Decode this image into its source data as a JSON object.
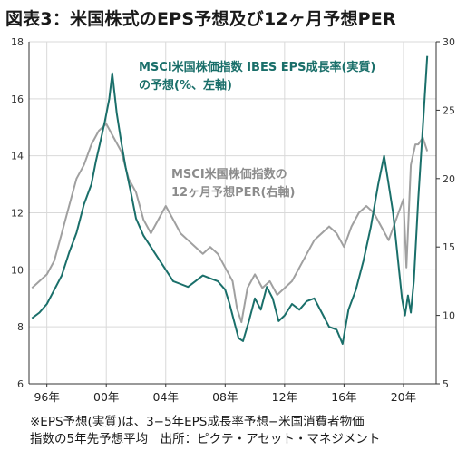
{
  "title": "図表3：米国株式のEPS予想及び12ヶ月予想PER",
  "footnote": {
    "line1": "※EPS予想(実質)は、3−5年EPS成長率予想−米国消費者物価",
    "line2": "指数の5年先予想平均　出所：ピクテ・アセット・マネジメント"
  },
  "colors": {
    "eps_series": "#1a6f6a",
    "per_series": "#a0a0a0",
    "eps_label": "#1a6f6a",
    "per_label": "#8c8c8c",
    "grid": "#d9d9d9",
    "axis": "#333333"
  },
  "chart_data": {
    "type": "line",
    "x_tick_labels": [
      "96年",
      "00年",
      "04年",
      "08年",
      "12年",
      "16年",
      "20年"
    ],
    "x_ticks": [
      1996,
      2000,
      2004,
      2008,
      2012,
      2016,
      2020
    ],
    "xlim": [
      1994.8,
      2022.2
    ],
    "y_left": {
      "lim": [
        6,
        18
      ],
      "ticks": [
        6,
        8,
        10,
        12,
        14,
        16,
        18
      ],
      "tick_labels": [
        "6",
        "8",
        "10",
        "12",
        "14",
        "16",
        "18"
      ]
    },
    "y_right": {
      "lim": [
        5,
        30
      ],
      "ticks": [
        5,
        10,
        15,
        20,
        25,
        30
      ],
      "tick_labels": [
        "5",
        "10",
        "15",
        "20",
        "25",
        "30"
      ]
    },
    "grid": true,
    "series": [
      {
        "name": "MSCI米国株価指数 IBES EPS成長率(実質)の予想(%、左軸)",
        "label_line1": "MSCI米国株価指数 IBES EPS成長率(実質)",
        "label_line2": "の予想(%、左軸)",
        "axis": "left",
        "points": [
          [
            1995.0,
            8.3
          ],
          [
            1995.5,
            8.5
          ],
          [
            1996.0,
            8.8
          ],
          [
            1996.5,
            9.3
          ],
          [
            1997.0,
            9.8
          ],
          [
            1997.5,
            10.6
          ],
          [
            1998.0,
            11.3
          ],
          [
            1998.5,
            12.3
          ],
          [
            1999.0,
            13.0
          ],
          [
            1999.3,
            13.8
          ],
          [
            1999.6,
            14.5
          ],
          [
            1999.9,
            15.2
          ],
          [
            2000.2,
            16.0
          ],
          [
            2000.4,
            16.9
          ],
          [
            2000.7,
            15.5
          ],
          [
            2001.0,
            14.5
          ],
          [
            2001.3,
            13.6
          ],
          [
            2001.7,
            12.6
          ],
          [
            2002.0,
            11.8
          ],
          [
            2002.5,
            11.2
          ],
          [
            2003.0,
            10.8
          ],
          [
            2003.5,
            10.4
          ],
          [
            2004.0,
            10.0
          ],
          [
            2004.5,
            9.6
          ],
          [
            2005.0,
            9.5
          ],
          [
            2005.5,
            9.4
          ],
          [
            2006.0,
            9.6
          ],
          [
            2006.5,
            9.8
          ],
          [
            2007.0,
            9.7
          ],
          [
            2007.5,
            9.6
          ],
          [
            2008.0,
            9.3
          ],
          [
            2008.3,
            8.8
          ],
          [
            2008.6,
            8.2
          ],
          [
            2008.9,
            7.6
          ],
          [
            2009.2,
            7.5
          ],
          [
            2009.6,
            8.2
          ],
          [
            2010.0,
            9.0
          ],
          [
            2010.4,
            8.6
          ],
          [
            2010.8,
            9.4
          ],
          [
            2011.2,
            9.0
          ],
          [
            2011.6,
            8.2
          ],
          [
            2012.0,
            8.4
          ],
          [
            2012.5,
            8.8
          ],
          [
            2013.0,
            8.6
          ],
          [
            2013.5,
            8.9
          ],
          [
            2014.0,
            9.0
          ],
          [
            2014.5,
            8.5
          ],
          [
            2015.0,
            8.0
          ],
          [
            2015.5,
            7.9
          ],
          [
            2015.9,
            7.4
          ],
          [
            2016.3,
            8.6
          ],
          [
            2016.8,
            9.3
          ],
          [
            2017.3,
            10.3
          ],
          [
            2017.8,
            11.5
          ],
          [
            2018.3,
            13.0
          ],
          [
            2018.7,
            14.0
          ],
          [
            2019.0,
            13.0
          ],
          [
            2019.3,
            12.0
          ],
          [
            2019.6,
            10.5
          ],
          [
            2019.9,
            9.0
          ],
          [
            2020.1,
            8.4
          ],
          [
            2020.3,
            9.1
          ],
          [
            2020.5,
            8.5
          ],
          [
            2020.7,
            9.6
          ],
          [
            2021.0,
            12.5
          ],
          [
            2021.3,
            15.0
          ],
          [
            2021.6,
            17.5
          ]
        ]
      },
      {
        "name": "MSCI米国株価指数の12ヶ月予想PER(右軸)",
        "label_line1": "MSCI米国株価指数の",
        "label_line2": "12ヶ月予想PER(右軸)",
        "axis": "right",
        "points": [
          [
            1995.0,
            12.0
          ],
          [
            1995.5,
            12.5
          ],
          [
            1996.0,
            13.0
          ],
          [
            1996.5,
            14.0
          ],
          [
            1997.0,
            16.0
          ],
          [
            1997.5,
            18.0
          ],
          [
            1998.0,
            20.0
          ],
          [
            1998.5,
            21.0
          ],
          [
            1999.0,
            22.5
          ],
          [
            1999.5,
            23.5
          ],
          [
            2000.0,
            24.0
          ],
          [
            2000.5,
            23.0
          ],
          [
            2001.0,
            22.0
          ],
          [
            2001.5,
            20.0
          ],
          [
            2002.0,
            19.0
          ],
          [
            2002.5,
            17.0
          ],
          [
            2003.0,
            16.0
          ],
          [
            2003.5,
            17.0
          ],
          [
            2004.0,
            18.0
          ],
          [
            2004.5,
            17.0
          ],
          [
            2005.0,
            16.0
          ],
          [
            2005.5,
            15.5
          ],
          [
            2006.0,
            15.0
          ],
          [
            2006.5,
            14.5
          ],
          [
            2007.0,
            15.0
          ],
          [
            2007.5,
            14.5
          ],
          [
            2008.0,
            13.5
          ],
          [
            2008.5,
            12.5
          ],
          [
            2008.8,
            10.5
          ],
          [
            2009.1,
            9.5
          ],
          [
            2009.5,
            12.0
          ],
          [
            2010.0,
            13.0
          ],
          [
            2010.5,
            12.0
          ],
          [
            2011.0,
            12.5
          ],
          [
            2011.5,
            11.5
          ],
          [
            2012.0,
            12.0
          ],
          [
            2012.5,
            12.5
          ],
          [
            2013.0,
            13.5
          ],
          [
            2013.5,
            14.5
          ],
          [
            2014.0,
            15.5
          ],
          [
            2014.5,
            16.0
          ],
          [
            2015.0,
            16.5
          ],
          [
            2015.5,
            16.0
          ],
          [
            2016.0,
            15.0
          ],
          [
            2016.5,
            16.5
          ],
          [
            2017.0,
            17.5
          ],
          [
            2017.5,
            18.0
          ],
          [
            2018.0,
            17.5
          ],
          [
            2018.5,
            16.5
          ],
          [
            2019.0,
            15.5
          ],
          [
            2019.5,
            17.0
          ],
          [
            2020.0,
            18.5
          ],
          [
            2020.2,
            13.5
          ],
          [
            2020.5,
            21.0
          ],
          [
            2020.8,
            22.5
          ],
          [
            2021.0,
            22.5
          ],
          [
            2021.3,
            23.0
          ],
          [
            2021.6,
            22.0
          ]
        ]
      }
    ]
  }
}
